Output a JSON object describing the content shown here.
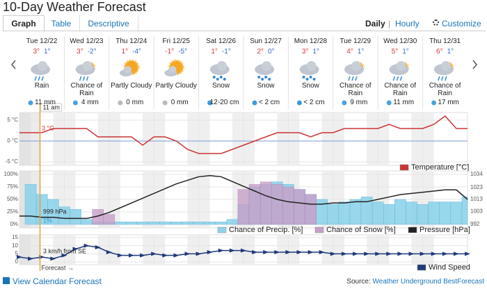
{
  "header": {
    "title": "10-Day Weather Forecast",
    "tabs": [
      "Graph",
      "Table",
      "Descriptive"
    ],
    "modes": [
      "Daily",
      "Hourly"
    ],
    "customize": "Customize"
  },
  "days": [
    {
      "date": "Tue 12/22",
      "high": "3°",
      "low": "1°",
      "condition": "Rain",
      "precip": "11 mm"
    },
    {
      "date": "Wed 12/23",
      "high": "3°",
      "low": "-2°",
      "condition": "Chance of Rain",
      "precip": "4 mm"
    },
    {
      "date": "Thu 12/24",
      "high": "1°",
      "low": "-4°",
      "condition": "Partly Cloudy",
      "precip": "0 mm"
    },
    {
      "date": "Fri 12/25",
      "high": "-1°",
      "low": "-5°",
      "condition": "Partly Cloudy",
      "precip": "0 mm"
    },
    {
      "date": "Sat 12/26",
      "high": "1°",
      "low": "-1°",
      "condition": "Snow",
      "precip": "12-20 cm"
    },
    {
      "date": "Sun 12/27",
      "high": "2°",
      "low": "0°",
      "condition": "Snow",
      "precip": "< 2 cm"
    },
    {
      "date": "Mon 12/28",
      "high": "3°",
      "low": "1°",
      "condition": "Snow",
      "precip": "< 2 cm"
    },
    {
      "date": "Tue 12/29",
      "high": "4°",
      "low": "1°",
      "condition": "Chance of Rain",
      "precip": "9 mm"
    },
    {
      "date": "Wed 12/30",
      "high": "5°",
      "low": "1°",
      "condition": "Chance of Rain",
      "precip": "11 mm"
    },
    {
      "date": "Thu 12/31",
      "high": "6°",
      "low": "1°",
      "condition": "Chance of Rain",
      "precip": "17 mm"
    }
  ],
  "now": {
    "x": 11,
    "label": "11 am",
    "forecast": "Forecast →"
  },
  "chart_data": [
    {
      "type": "line",
      "current_label": "3 °C",
      "xlim": [
        0,
        240
      ],
      "x": [
        0,
        6,
        12,
        18,
        24,
        30,
        36,
        42,
        48,
        54,
        60,
        66,
        72,
        78,
        84,
        90,
        96,
        102,
        108,
        114,
        120,
        126,
        132,
        138,
        144,
        150,
        156,
        162,
        168,
        174,
        180,
        186,
        192,
        198,
        204,
        210,
        216,
        222,
        228,
        234,
        240
      ],
      "ylim": [
        -5.5,
        6.5
      ],
      "yticks": [
        {
          "value": 5,
          "label": "5 °C"
        },
        {
          "value": 0,
          "label": "0 °C"
        },
        {
          "value": -5,
          "label": "-5 °C"
        }
      ],
      "series": [
        {
          "name": "Temperature [°C]",
          "color": "#cc3333",
          "values": [
            2,
            2,
            2,
            3,
            3,
            3,
            3,
            1,
            1,
            1,
            1,
            -1,
            1,
            1,
            0,
            -2,
            -3,
            -3,
            -3,
            -2,
            -1,
            0,
            1,
            2,
            2,
            2,
            1,
            2,
            2,
            3,
            3,
            3,
            3,
            4,
            3,
            3,
            3,
            4,
            6,
            3,
            3
          ]
        }
      ]
    },
    {
      "type": "bar",
      "current_labels": [
        "999 hPa",
        "1%"
      ],
      "xlim": [
        0,
        240
      ],
      "x": [
        0,
        6,
        12,
        18,
        24,
        30,
        36,
        42,
        48,
        54,
        60,
        66,
        72,
        78,
        84,
        90,
        96,
        102,
        108,
        114,
        120,
        126,
        132,
        138,
        144,
        150,
        156,
        162,
        168,
        174,
        180,
        186,
        192,
        198,
        204,
        210,
        216,
        222,
        228,
        234,
        240
      ],
      "ylim": [
        0,
        100
      ],
      "yticks": [
        {
          "value": 100,
          "label": "100%"
        },
        {
          "value": 75,
          "label": "75%"
        },
        {
          "value": 50,
          "label": "50%"
        },
        {
          "value": 25,
          "label": "25%"
        },
        {
          "value": 0,
          "label": "0%"
        }
      ],
      "y2lim": [
        992,
        1034
      ],
      "y2ticks": [
        1034,
        1023,
        1013,
        1003,
        992
      ],
      "series": [
        {
          "name": "Chance of Precip. [%]",
          "color": "#8fd3ea",
          "values": [
            0,
            80,
            60,
            50,
            35,
            30,
            10,
            5,
            5,
            5,
            5,
            5,
            5,
            5,
            5,
            5,
            5,
            5,
            5,
            10,
            40,
            75,
            80,
            85,
            80,
            70,
            60,
            50,
            40,
            45,
            50,
            55,
            45,
            40,
            50,
            45,
            40,
            45,
            45,
            45,
            55
          ]
        },
        {
          "name": "Chance of Snow [%]",
          "color": "#c8a0c8",
          "values": [
            0,
            0,
            0,
            0,
            0,
            0,
            0,
            30,
            20,
            0,
            0,
            0,
            0,
            0,
            0,
            0,
            0,
            0,
            0,
            0,
            70,
            80,
            85,
            80,
            75,
            70,
            60,
            0,
            0,
            0,
            0,
            0,
            0,
            0,
            0,
            0,
            0,
            0,
            0,
            0,
            0
          ]
        },
        {
          "name": "Pressure [hPa]",
          "color": "#222222",
          "axis": "y2",
          "values": [
            999,
            999,
            998,
            998,
            997,
            997,
            997,
            999,
            1002,
            1006,
            1010,
            1014,
            1018,
            1022,
            1026,
            1029,
            1032,
            1033,
            1032,
            1028,
            1024,
            1020,
            1016,
            1013,
            1011,
            1010,
            1009,
            1009,
            1010,
            1010,
            1011,
            1011,
            1013,
            1015,
            1017,
            1018,
            1019,
            1020,
            1021,
            1021,
            1013
          ]
        }
      ]
    },
    {
      "type": "line",
      "current_label": "3 km/h from SE",
      "xlim": [
        0,
        240
      ],
      "x": [
        0,
        6,
        12,
        18,
        24,
        30,
        36,
        42,
        48,
        54,
        60,
        66,
        72,
        78,
        84,
        90,
        96,
        102,
        108,
        114,
        120,
        126,
        132,
        138,
        144,
        150,
        156,
        162,
        168,
        174,
        180,
        186,
        192,
        198,
        204,
        210,
        216,
        222,
        228,
        234,
        240
      ],
      "ylim": [
        0,
        15
      ],
      "yticks": [
        15,
        10,
        5,
        0
      ],
      "series": [
        {
          "name": "Wind Speed",
          "color": "#1f3a7a",
          "values": [
            3,
            2,
            3,
            2,
            4,
            8,
            10,
            9,
            6,
            4,
            4,
            4,
            5,
            4,
            4,
            5,
            5,
            6,
            7,
            7,
            7,
            6,
            6,
            6,
            6,
            6,
            6,
            6,
            5,
            5,
            5,
            5,
            5,
            5,
            5,
            5,
            5,
            5,
            5,
            5,
            5
          ]
        }
      ]
    }
  ],
  "footer": {
    "calendar": "View Calendar Forecast",
    "source_label": "Source:",
    "source": "Weather Underground BestForecast"
  }
}
